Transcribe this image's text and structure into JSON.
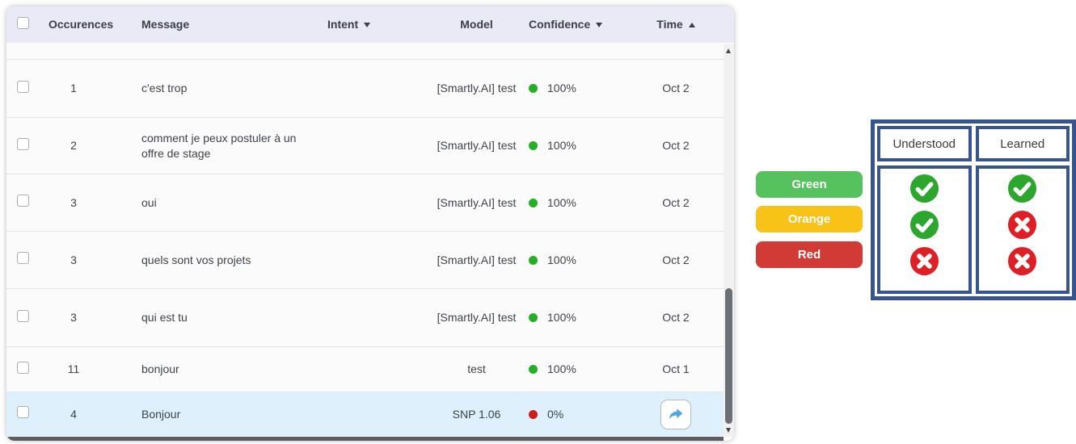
{
  "table": {
    "columns": {
      "occurences": "Occurences",
      "message": "Message",
      "intent": "Intent",
      "model": "Model",
      "confidence": "Confidence",
      "time": "Time",
      "intent_sort": "desc",
      "confidence_sort": "desc",
      "time_sort": "asc"
    },
    "rows": [
      {
        "occurences": "1",
        "message": "c'est trop",
        "intent": "",
        "model": "[Smartly.AI] test",
        "confidence": "100%",
        "confidence_status": "green",
        "time": "Oct 2"
      },
      {
        "occurences": "2",
        "message": "comment je peux postuler à un offre de stage",
        "intent": "",
        "model": "[Smartly.AI] test",
        "confidence": "100%",
        "confidence_status": "green",
        "time": "Oct 2"
      },
      {
        "occurences": "3",
        "message": "oui",
        "intent": "",
        "model": "[Smartly.AI] test",
        "confidence": "100%",
        "confidence_status": "green",
        "time": "Oct 2"
      },
      {
        "occurences": "3",
        "message": "quels sont vos projets",
        "intent": "",
        "model": "[Smartly.AI] test",
        "confidence": "100%",
        "confidence_status": "green",
        "time": "Oct 2"
      },
      {
        "occurences": "3",
        "message": "qui est tu",
        "intent": "",
        "model": "[Smartly.AI] test",
        "confidence": "100%",
        "confidence_status": "green",
        "time": "Oct 2"
      },
      {
        "occurences": "11",
        "message": "bonjour",
        "intent": "",
        "model": "test",
        "confidence": "100%",
        "confidence_status": "green",
        "time": "Oct 1"
      },
      {
        "occurences": "4",
        "message": "Bonjour",
        "intent": "",
        "model": "SNP 1.06",
        "confidence": "0%",
        "confidence_status": "red",
        "time": "",
        "selected": true,
        "action_icon": "share-arrow"
      }
    ]
  },
  "legend": {
    "pills": [
      {
        "label": "Green",
        "color": "#55c25e"
      },
      {
        "label": "Orange",
        "color": "#f9c216"
      },
      {
        "label": "Red",
        "color": "#d23a35"
      }
    ]
  },
  "matrix": {
    "headers": {
      "understood": "Understood",
      "learned": "Learned"
    },
    "rows": [
      {
        "color": "Green",
        "understood": "check",
        "learned": "check"
      },
      {
        "color": "Orange",
        "understood": "check",
        "learned": "cross"
      },
      {
        "color": "Red",
        "understood": "cross",
        "learned": "cross"
      }
    ],
    "border_color": "#37548f",
    "check_color": "#2ca62c",
    "cross_color": "#df1f26"
  },
  "colors": {
    "header_bg": "#e9eaf5",
    "row_bg": "#fbfbfc",
    "selected_row_bg": "#ddf0fb",
    "confidence_green": "#23b123",
    "confidence_red": "#cc1d1d",
    "share_arrow_blue": "#49a4e9",
    "scroll_thumb": "#6b7076"
  }
}
